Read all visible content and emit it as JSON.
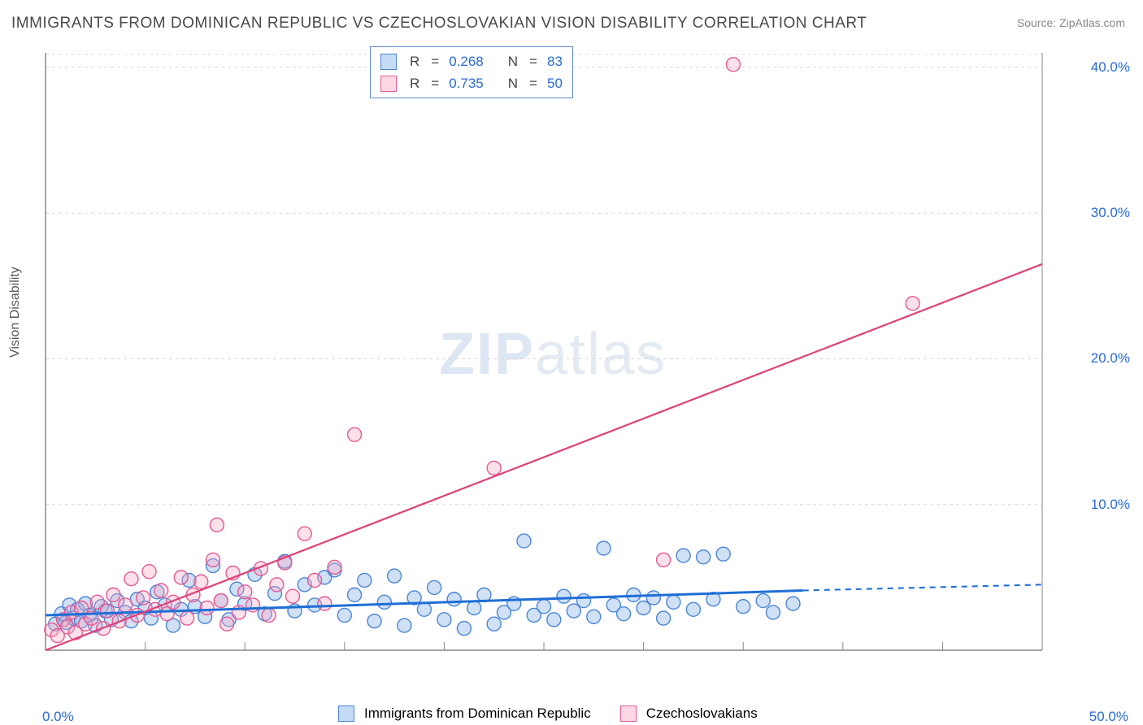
{
  "title": "IMMIGRANTS FROM DOMINICAN REPUBLIC VS CZECHOSLOVAKIAN VISION DISABILITY CORRELATION CHART",
  "source": "Source: ZipAtlas.com",
  "watermark_zip": "ZIP",
  "watermark_atlas": "atlas",
  "y_axis_label": "Vision Disability",
  "chart": {
    "type": "scatter",
    "background_color": "#ffffff",
    "grid_color": "#d8d8d8",
    "axis_color": "#888888",
    "xlim": [
      0,
      50
    ],
    "ylim": [
      0,
      41
    ],
    "y_ticks": [
      10,
      20,
      30,
      40
    ],
    "y_tick_labels": [
      "10.0%",
      "20.0%",
      "30.0%",
      "40.0%"
    ],
    "x_tick_min": "0.0%",
    "x_tick_max": "50.0%",
    "x_minor_ticks": [
      5,
      10,
      15,
      20,
      25,
      30,
      35,
      40,
      45
    ],
    "marker_radius": 8.5,
    "marker_stroke_width": 1.4,
    "series": [
      {
        "name": "Immigrants from Dominican Republic",
        "legend_key": "series1_name",
        "fill": "rgba(120,165,225,0.35)",
        "stroke": "#4a85d6",
        "swatch_fill": "rgba(160,195,240,0.6)",
        "swatch_stroke": "#4a85d6",
        "R": "0.268",
        "N": "83",
        "trend": {
          "x1": 0,
          "y1": 2.4,
          "x2": 38,
          "y2": 4.1,
          "dash_x2": 50,
          "dash_y2": 4.5,
          "color": "#1f6fd6",
          "width": 3
        },
        "points": [
          [
            0.5,
            1.8
          ],
          [
            0.8,
            2.5
          ],
          [
            1.0,
            1.9
          ],
          [
            1.2,
            3.1
          ],
          [
            1.4,
            2.2
          ],
          [
            1.6,
            2.8
          ],
          [
            1.8,
            2.0
          ],
          [
            2.0,
            3.2
          ],
          [
            2.2,
            2.4
          ],
          [
            2.5,
            1.7
          ],
          [
            2.8,
            3.0
          ],
          [
            3.0,
            2.7
          ],
          [
            3.3,
            2.1
          ],
          [
            3.6,
            3.4
          ],
          [
            4.0,
            2.6
          ],
          [
            4.3,
            2.0
          ],
          [
            4.6,
            3.5
          ],
          [
            5.0,
            2.9
          ],
          [
            5.3,
            2.2
          ],
          [
            5.6,
            4.0
          ],
          [
            6.0,
            3.1
          ],
          [
            6.4,
            1.7
          ],
          [
            6.8,
            2.8
          ],
          [
            7.2,
            4.8
          ],
          [
            7.5,
            3.0
          ],
          [
            8.0,
            2.3
          ],
          [
            8.4,
            5.8
          ],
          [
            8.8,
            3.4
          ],
          [
            9.2,
            2.1
          ],
          [
            9.6,
            4.2
          ],
          [
            10.0,
            3.2
          ],
          [
            10.5,
            5.2
          ],
          [
            11.0,
            2.5
          ],
          [
            11.5,
            3.9
          ],
          [
            12.0,
            6.1
          ],
          [
            12.5,
            2.7
          ],
          [
            13.0,
            4.5
          ],
          [
            13.5,
            3.1
          ],
          [
            14.0,
            5.0
          ],
          [
            14.5,
            5.5
          ],
          [
            15.0,
            2.4
          ],
          [
            15.5,
            3.8
          ],
          [
            16.0,
            4.8
          ],
          [
            16.5,
            2.0
          ],
          [
            17.0,
            3.3
          ],
          [
            17.5,
            5.1
          ],
          [
            18.0,
            1.7
          ],
          [
            18.5,
            3.6
          ],
          [
            19.0,
            2.8
          ],
          [
            19.5,
            4.3
          ],
          [
            20.0,
            2.1
          ],
          [
            20.5,
            3.5
          ],
          [
            21.0,
            1.5
          ],
          [
            21.5,
            2.9
          ],
          [
            22.0,
            3.8
          ],
          [
            22.5,
            1.8
          ],
          [
            23.0,
            2.6
          ],
          [
            23.5,
            3.2
          ],
          [
            24.0,
            7.5
          ],
          [
            24.5,
            2.4
          ],
          [
            25.0,
            3.0
          ],
          [
            25.5,
            2.1
          ],
          [
            26.0,
            3.7
          ],
          [
            26.5,
            2.7
          ],
          [
            27.0,
            3.4
          ],
          [
            27.5,
            2.3
          ],
          [
            28.0,
            7.0
          ],
          [
            28.5,
            3.1
          ],
          [
            29.0,
            2.5
          ],
          [
            29.5,
            3.8
          ],
          [
            30.0,
            2.9
          ],
          [
            30.5,
            3.6
          ],
          [
            31.0,
            2.2
          ],
          [
            31.5,
            3.3
          ],
          [
            32.0,
            6.5
          ],
          [
            32.5,
            2.8
          ],
          [
            33.0,
            6.4
          ],
          [
            33.5,
            3.5
          ],
          [
            34.0,
            6.6
          ],
          [
            35.0,
            3.0
          ],
          [
            36.0,
            3.4
          ],
          [
            36.5,
            2.6
          ],
          [
            37.5,
            3.2
          ]
        ]
      },
      {
        "name": "Czechoslovakians",
        "legend_key": "series2_name",
        "fill": "rgba(245,165,195,0.35)",
        "stroke": "#e65a92",
        "swatch_fill": "rgba(250,195,215,0.65)",
        "swatch_stroke": "#e65a92",
        "R": "0.735",
        "N": "50",
        "trend": {
          "x1": 0,
          "y1": 0.0,
          "x2": 50,
          "y2": 26.5,
          "dash_x2": 50,
          "dash_y2": 26.5,
          "color": "#e04078",
          "width": 2.2
        },
        "points": [
          [
            0.3,
            1.4
          ],
          [
            0.6,
            1.0
          ],
          [
            0.9,
            2.1
          ],
          [
            1.1,
            1.6
          ],
          [
            1.3,
            2.6
          ],
          [
            1.5,
            1.2
          ],
          [
            1.8,
            2.9
          ],
          [
            2.0,
            1.8
          ],
          [
            2.3,
            2.2
          ],
          [
            2.6,
            3.3
          ],
          [
            2.9,
            1.5
          ],
          [
            3.1,
            2.7
          ],
          [
            3.4,
            3.8
          ],
          [
            3.7,
            2.0
          ],
          [
            4.0,
            3.1
          ],
          [
            4.3,
            4.9
          ],
          [
            4.6,
            2.4
          ],
          [
            4.9,
            3.6
          ],
          [
            5.2,
            5.4
          ],
          [
            5.5,
            2.8
          ],
          [
            5.8,
            4.1
          ],
          [
            6.1,
            2.5
          ],
          [
            6.4,
            3.3
          ],
          [
            6.8,
            5.0
          ],
          [
            7.1,
            2.2
          ],
          [
            7.4,
            3.8
          ],
          [
            7.8,
            4.7
          ],
          [
            8.1,
            2.9
          ],
          [
            8.4,
            6.2
          ],
          [
            8.8,
            3.4
          ],
          [
            9.1,
            1.8
          ],
          [
            9.4,
            5.3
          ],
          [
            9.7,
            2.6
          ],
          [
            8.6,
            8.6
          ],
          [
            10.0,
            4.0
          ],
          [
            10.4,
            3.1
          ],
          [
            10.8,
            5.6
          ],
          [
            11.2,
            2.4
          ],
          [
            11.6,
            4.5
          ],
          [
            12.0,
            6.0
          ],
          [
            12.4,
            3.7
          ],
          [
            13.0,
            8.0
          ],
          [
            13.5,
            4.8
          ],
          [
            14.0,
            3.2
          ],
          [
            14.5,
            5.7
          ],
          [
            15.5,
            14.8
          ],
          [
            22.5,
            12.5
          ],
          [
            31.0,
            6.2
          ],
          [
            34.5,
            40.2
          ],
          [
            43.5,
            23.8
          ]
        ]
      }
    ]
  },
  "legend_labels": {
    "R": "R",
    "N": "N",
    "eq": "="
  },
  "series1_name": "Immigrants from Dominican Republic",
  "series2_name": "Czechoslovakians"
}
